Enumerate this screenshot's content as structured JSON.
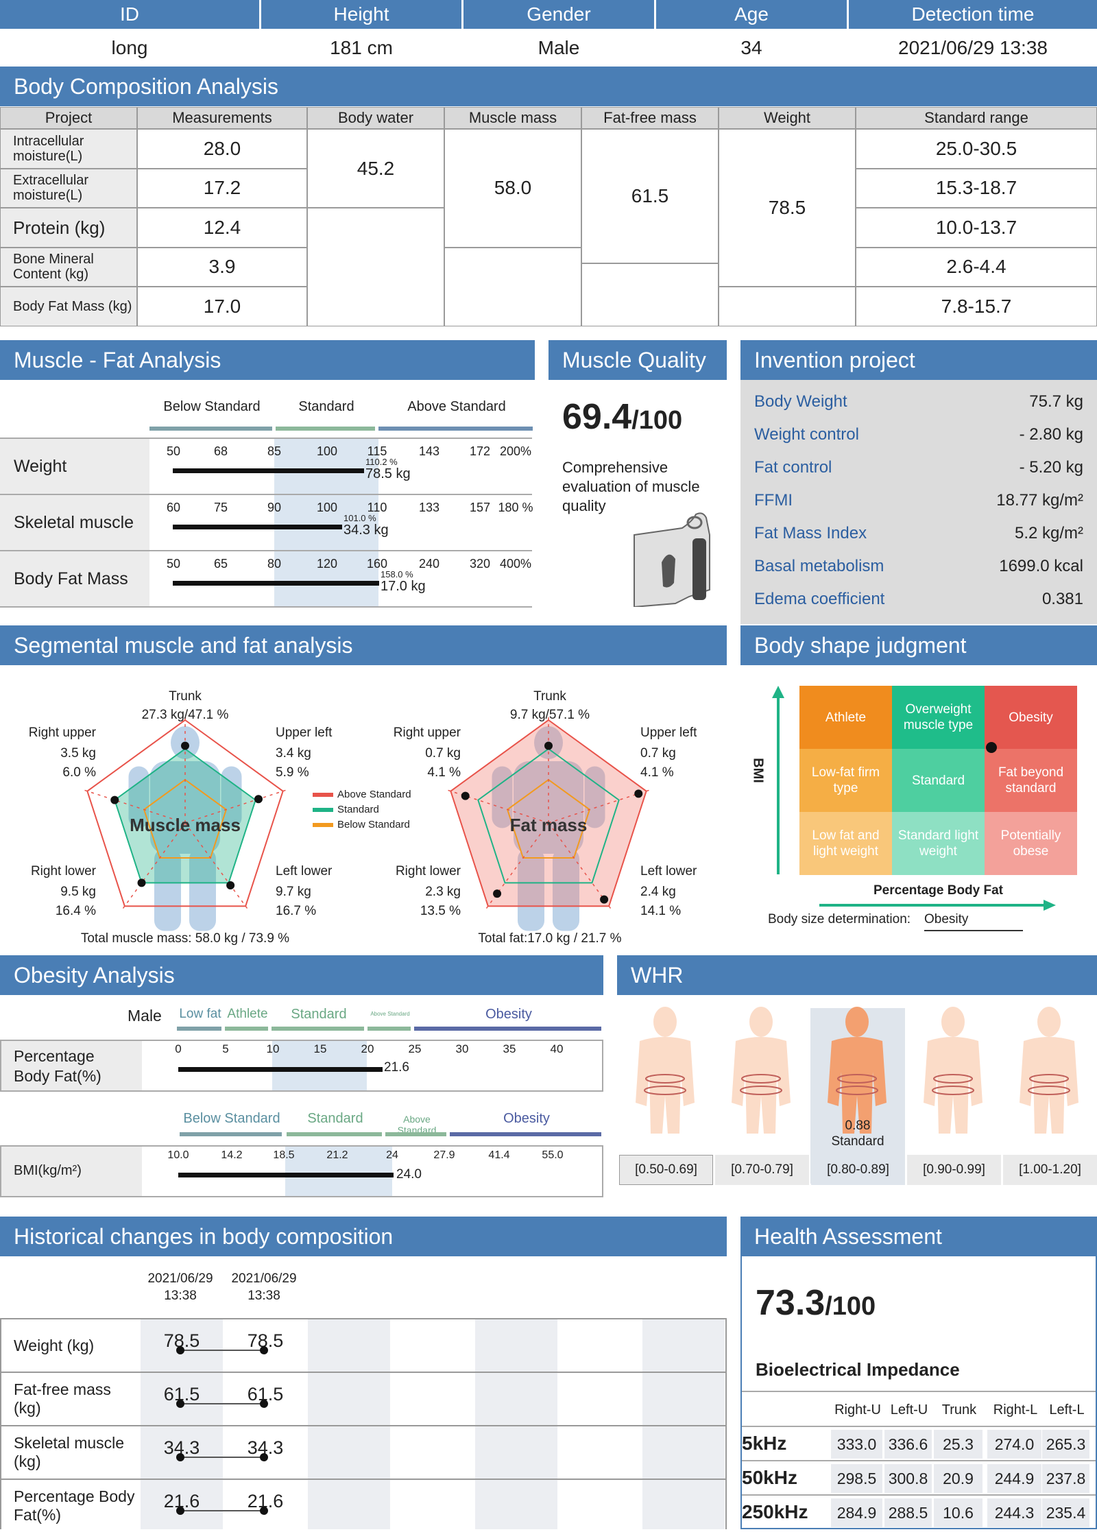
{
  "info": {
    "headers": [
      "ID",
      "Height",
      "Gender",
      "Age",
      "Detection time"
    ],
    "values": [
      "long",
      "181 cm",
      "Male",
      "34",
      "2021/06/29 13:38"
    ]
  },
  "bca": {
    "title": "Body Composition Analysis",
    "col_headers": [
      "Project",
      "Measurements",
      "Body water",
      "Muscle mass",
      "Fat-free mass",
      "Weight",
      "Standard range"
    ],
    "rows": [
      {
        "label": "Intracellular moisture(L)",
        "value": "28.0",
        "range": "25.0-30.5"
      },
      {
        "label": "Extracellular moisture(L)",
        "value": "17.2",
        "range": "15.3-18.7"
      },
      {
        "label": "Protein (kg)",
        "value": "12.4",
        "range": "10.0-13.7"
      },
      {
        "label": "Bone Mineral Content (kg)",
        "value": "3.9",
        "range": "2.6-4.4"
      },
      {
        "label": "Body Fat Mass (kg)",
        "value": "17.0",
        "range": "7.8-15.7"
      }
    ],
    "body_water": "45.2",
    "muscle_mass": "58.0",
    "fat_free_mass": "61.5",
    "weight": "78.5"
  },
  "mfa": {
    "title": "Muscle - Fat Analysis",
    "bands": [
      "Below Standard",
      "Standard",
      "Above Standard"
    ],
    "rows": [
      {
        "label": "Weight",
        "ticks": [
          "50",
          "68",
          "85",
          "100",
          "115",
          "143",
          "172",
          "200%"
        ],
        "pct_label": "110.2 %",
        "value_label": "78.5 kg",
        "bar_fraction": 0.51
      },
      {
        "label": "Skeletal muscle",
        "ticks": [
          "60",
          "75",
          "90",
          "100",
          "110",
          "133",
          "157",
          "180 %"
        ],
        "pct_label": "101.0 %",
        "value_label": "34.3 kg",
        "bar_fraction": 0.45
      },
      {
        "label": "Body Fat Mass",
        "ticks": [
          "50",
          "65",
          "80",
          "120",
          "160",
          "240",
          "320",
          "400%"
        ],
        "pct_label": "158.0 %",
        "value_label": "17.0 kg",
        "bar_fraction": 0.55
      }
    ]
  },
  "mq": {
    "title": "Muscle Quality",
    "score": "69.4",
    "max": "/100",
    "desc": "Comprehensive evaluation of muscle quality",
    "icon": "hand-grip-icon"
  },
  "inv": {
    "title": "Invention project",
    "rows": [
      {
        "label": "Body Weight",
        "value": "75.7 kg"
      },
      {
        "label": "Weight control",
        "value": "- 2.80 kg"
      },
      {
        "label": "Fat control",
        "value": "- 5.20 kg"
      },
      {
        "label": "FFMI",
        "value": "18.77 kg/m²"
      },
      {
        "label": "Fat Mass Index",
        "value": "5.2 kg/m²"
      },
      {
        "label": "Basal metabolism",
        "value": "1699.0 kcal"
      },
      {
        "label": "Edema coefficient",
        "value": "0.381"
      }
    ]
  },
  "seg": {
    "title": "Segmental muscle and fat analysis",
    "muscle": {
      "center": "Muscle mass",
      "trunk_label": "Trunk",
      "trunk": "27.3 kg/47.1 %",
      "ru_label": "Right upper",
      "ru": [
        "3.5 kg",
        "6.0 %"
      ],
      "lu_label": "Upper left",
      "lu": [
        "3.4 kg",
        "5.9 %"
      ],
      "rl_label": "Right lower",
      "rl": [
        "9.5 kg",
        "16.4 %"
      ],
      "ll_label": "Left lower",
      "ll": [
        "9.7 kg",
        "16.7 %"
      ],
      "total": "Total muscle mass:  58.0 kg / 73.9 %",
      "vals": [
        0.75,
        0.75,
        0.75,
        0.72,
        0.72
      ]
    },
    "fat": {
      "center": "Fat mass",
      "trunk_label": "Trunk",
      "trunk": "9.7 kg/57.1 %",
      "ru_label": "Right upper",
      "ru": [
        "0.7 kg",
        "4.1 %"
      ],
      "lu_label": "Upper left",
      "lu": [
        "0.7 kg",
        "4.1 %"
      ],
      "rl_label": "Right lower",
      "rl": [
        "2.3 kg",
        "13.5 %"
      ],
      "ll_label": "Left lower",
      "ll": [
        "2.4 kg",
        "14.1 %"
      ],
      "total": "Total fat:17.0 kg / 21.7 %",
      "vals": [
        0.75,
        0.92,
        0.92,
        0.85,
        0.85
      ]
    },
    "legend": [
      "Above Standard",
      "Standard",
      "Below Standard"
    ],
    "colors": [
      "#e8534a",
      "#1fb386",
      "#f29a1f"
    ]
  },
  "bsj": {
    "title": "Body shape judgment",
    "cells": [
      "Athlete",
      "Overweight muscle type",
      "Obesity",
      "Low-fat firm type",
      "Standard",
      "Fat beyond standard",
      "Low fat and light weight",
      "Standard light weight",
      "Potentially obese"
    ],
    "ylabel": "BMI",
    "xlabel": "Percentage Body Fat",
    "det_label": "Body size determination:",
    "det_value": "Obesity"
  },
  "oa": {
    "title": "Obesity Analysis",
    "gender": "Male",
    "pbf": {
      "bands": [
        "Low fat",
        "Athlete",
        "Standard",
        "Above Standard",
        "Obesity"
      ],
      "label": "Percentage Body Fat(%)",
      "ticks": [
        "0",
        "5",
        "10",
        "15",
        "20",
        "25",
        "30",
        "35",
        "40"
      ],
      "value": "21.6",
      "value_num": 21.6
    },
    "bmi": {
      "bands": [
        "Below Standard",
        "Standard",
        "Above Standard",
        "Obesity"
      ],
      "label": "BMI(kg/m²)",
      "ticks": [
        "10.0",
        "14.2",
        "18.5",
        "21.2",
        "24",
        "27.9",
        "41.4",
        "55.0"
      ],
      "value": "24.0",
      "value_num": 24.0
    }
  },
  "whr": {
    "title": "WHR",
    "value": "0.88",
    "status": "Standard",
    "ranges": [
      "[0.50-0.69]",
      "[0.70-0.79]",
      "[0.80-0.89]",
      "[0.90-0.99]",
      "[1.00-1.20]"
    ],
    "active": 2
  },
  "hist": {
    "title": "Historical changes in body composition",
    "dates": [
      "2021/06/29\n13:38",
      "2021/06/29\n13:38"
    ],
    "rows": [
      {
        "label": "Weight (kg)",
        "values": [
          "78.5",
          "78.5"
        ]
      },
      {
        "label": "Fat-free mass (kg)",
        "values": [
          "61.5",
          "61.5"
        ]
      },
      {
        "label": "Skeletal muscle (kg)",
        "values": [
          "34.3",
          "34.3"
        ]
      },
      {
        "label": "Percentage Body Fat(%)",
        "values": [
          "21.6",
          "21.6"
        ]
      }
    ]
  },
  "ha": {
    "title": "Health Assessment",
    "score": "73.3",
    "max": "/100",
    "bio_title": "Bioelectrical Impedance",
    "cols": [
      "Right-U",
      "Left-U",
      "Trunk",
      "Right-L",
      "Left-L"
    ],
    "rows": [
      {
        "freq": "5kHz",
        "values": [
          "333.0",
          "336.6",
          "25.3",
          "274.0",
          "265.3"
        ]
      },
      {
        "freq": "50kHz",
        "values": [
          "298.5",
          "300.8",
          "20.9",
          "244.9",
          "237.8"
        ]
      },
      {
        "freq": "250kHz",
        "values": [
          "284.9",
          "288.5",
          "10.6",
          "244.3",
          "235.4"
        ]
      }
    ]
  }
}
